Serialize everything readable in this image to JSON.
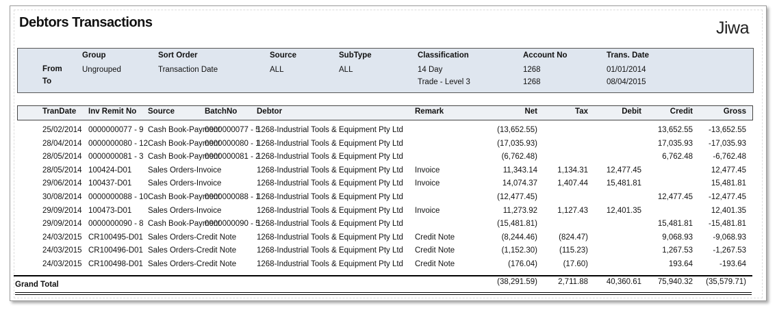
{
  "header": {
    "title": "Debtors Transactions",
    "logo": "Jiwa"
  },
  "parameters": {
    "row_labels": [
      "From",
      "To"
    ],
    "columns": [
      {
        "header": "Group",
        "from": "Ungrouped"
      },
      {
        "header": "Sort Order",
        "from": "Transaction Date"
      },
      {
        "header": "Source",
        "from": "ALL"
      },
      {
        "header": "SubType",
        "from": "ALL"
      },
      {
        "header": "Classification",
        "from": "14 Day",
        "to": "Trade - Level 3"
      },
      {
        "header": "Account No",
        "from": "1268",
        "to": "1268"
      },
      {
        "header": "Trans. Date",
        "from": "01/01/2014",
        "to": "08/04/2015"
      }
    ]
  },
  "table": {
    "columns": [
      "TranDate",
      "Inv Remit No",
      "Source",
      "BatchNo",
      "Debtor",
      "Remark",
      "Net",
      "Tax",
      "Debit",
      "Credit",
      "Gross"
    ],
    "rows": [
      [
        "25/02/2014",
        "0000000077 - 9",
        "Cash Book-Payment",
        "0000000077 - 5",
        "1268-Industrial Tools & Equipment Pty Ltd",
        null,
        "(13,652.55)",
        null,
        null,
        "13,652.55",
        "-13,652.55"
      ],
      [
        "28/04/2014",
        "0000000080 - 12",
        "Cash Book-Payment",
        "0000000080 - 1",
        "1268-Industrial Tools & Equipment Pty Ltd",
        null,
        "(17,035.93)",
        null,
        null,
        "17,035.93",
        "-17,035.93"
      ],
      [
        "28/05/2014",
        "0000000081 - 3",
        "Cash Book-Payment",
        "0000000081 - 2",
        "1268-Industrial Tools & Equipment Pty Ltd",
        null,
        "(6,762.48)",
        null,
        null,
        "6,762.48",
        "-6,762.48"
      ],
      [
        "28/05/2014",
        "100424-D01",
        "Sales Orders-Invoice",
        null,
        "1268-Industrial Tools & Equipment Pty Ltd",
        "Invoice",
        "11,343.14",
        "1,134.31",
        "12,477.45",
        null,
        "12,477.45"
      ],
      [
        "29/06/2014",
        "100437-D01",
        "Sales Orders-Invoice",
        null,
        "1268-Industrial Tools & Equipment Pty Ltd",
        "Invoice",
        "14,074.37",
        "1,407.44",
        "15,481.81",
        null,
        "15,481.81"
      ],
      [
        "30/08/2014",
        "0000000088 - 10",
        "Cash Book-Payment",
        "0000000088 - 1",
        "1268-Industrial Tools & Equipment Pty Ltd",
        null,
        "(12,477.45)",
        null,
        null,
        "12,477.45",
        "-12,477.45"
      ],
      [
        "29/09/2014",
        "100473-D01",
        "Sales Orders-Invoice",
        null,
        "1268-Industrial Tools & Equipment Pty Ltd",
        "Invoice",
        "11,273.92",
        "1,127.43",
        "12,401.35",
        null,
        "12,401.35"
      ],
      [
        "29/09/2014",
        "0000000090 - 8",
        "Cash Book-Payment",
        "0000000090 - 5",
        "1268-Industrial Tools & Equipment Pty Ltd",
        null,
        "(15,481.81)",
        null,
        null,
        "15,481.81",
        "-15,481.81"
      ],
      [
        "24/03/2015",
        "CR100495-D01",
        "Sales Orders-Credit Note",
        null,
        "1268-Industrial Tools & Equipment Pty Ltd",
        "Credit Note",
        "(8,244.46)",
        "(824.47)",
        null,
        "9,068.93",
        "-9,068.93"
      ],
      [
        "24/03/2015",
        "CR100496-D01",
        "Sales Orders-Credit Note",
        null,
        "1268-Industrial Tools & Equipment Pty Ltd",
        "Credit Note",
        "(1,152.30)",
        "(115.23)",
        null,
        "1,267.53",
        "-1,267.53"
      ],
      [
        "24/03/2015",
        "CR100498-D01",
        "Sales Orders-Credit Note",
        null,
        "1268-Industrial Tools & Equipment Pty Ltd",
        "Credit Note",
        "(176.04)",
        "(17.60)",
        null,
        "193.64",
        "-193.64"
      ]
    ],
    "total": {
      "label": "Grand Total",
      "values": [
        "(38,291.59)",
        "2,711.88",
        "40,360.61",
        "75,940.32",
        "(35,579.71)"
      ]
    }
  }
}
